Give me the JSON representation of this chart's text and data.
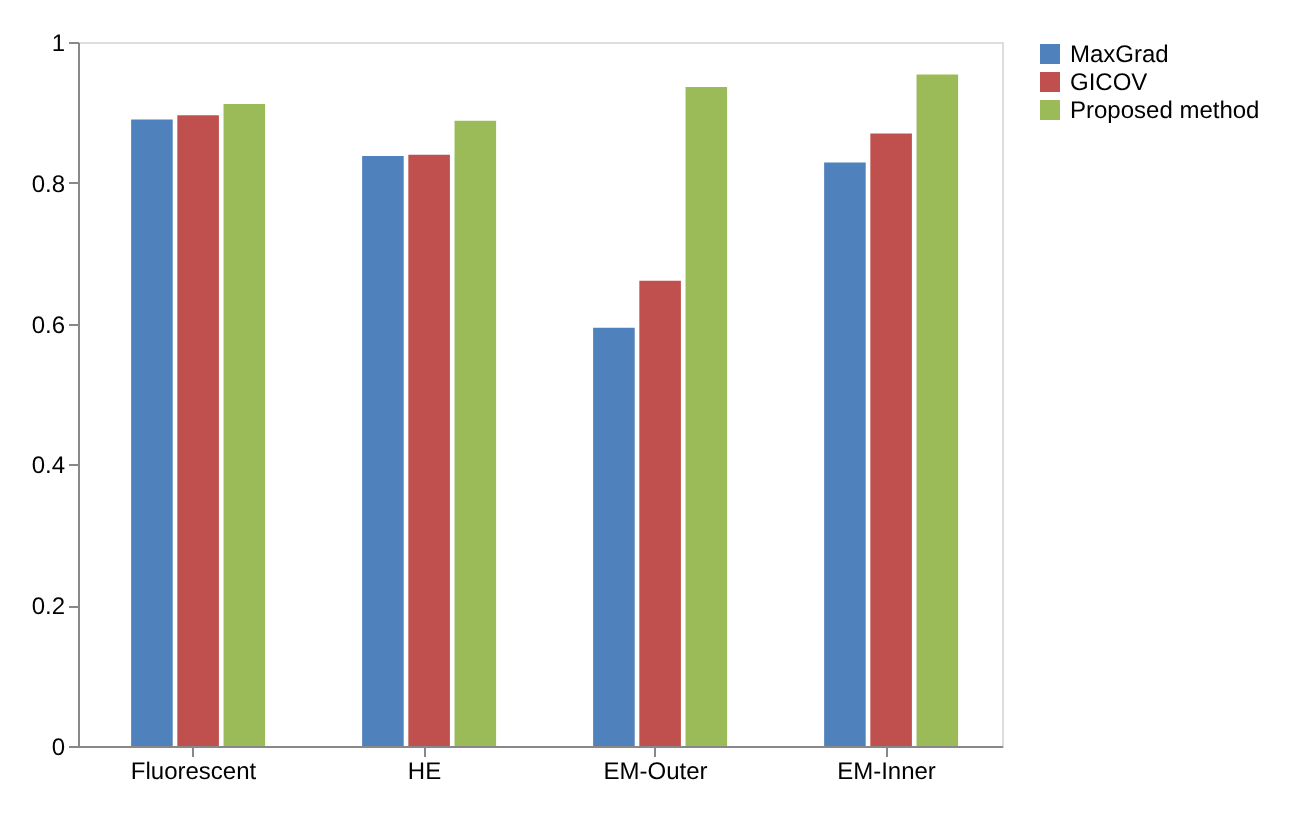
{
  "chart_data": {
    "type": "bar",
    "categories": [
      "Fluorescent",
      "HE",
      "EM-Outer",
      "EM-Inner"
    ],
    "series": [
      {
        "name": "MaxGrad",
        "color": "#4f81bd",
        "values": [
          0.89,
          0.838,
          0.594,
          0.829
        ]
      },
      {
        "name": "GICOV",
        "color": "#c0504d",
        "values": [
          0.896,
          0.84,
          0.661,
          0.87
        ]
      },
      {
        "name": "Proposed method",
        "color": "#9bbb59",
        "values": [
          0.912,
          0.888,
          0.936,
          0.954
        ]
      }
    ],
    "ylim": [
      0,
      1
    ],
    "yticks": [
      0,
      0.2,
      0.4,
      0.6,
      0.8,
      1
    ],
    "grid": false,
    "legend": "right"
  }
}
